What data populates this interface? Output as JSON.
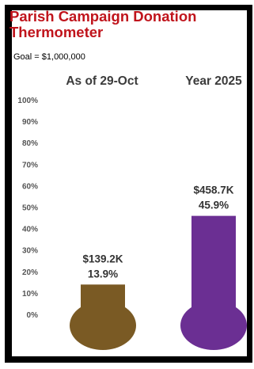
{
  "header": {
    "title_line1": "Parish Campaign Donation",
    "title_line2": "Thermometer",
    "goal": "Goal = $1,000,000"
  },
  "colors": {
    "title": "#c0141c",
    "frame": "#000000",
    "bar_1": "#7a5a24",
    "bar_2": "#6b2f93"
  },
  "chart_data": {
    "type": "bar",
    "categories": [
      "As of 29-Oct",
      "Year 2025"
    ],
    "values": [
      13.9,
      45.9
    ],
    "amounts": [
      "$139.2K",
      "$458.7K"
    ],
    "value_labels": [
      "13.9%",
      "45.9%"
    ],
    "ylim": [
      0,
      100
    ],
    "yticks": [
      "0%",
      "10%",
      "20%",
      "30%",
      "40%",
      "50%",
      "60%",
      "70%",
      "80%",
      "90%",
      "100%"
    ],
    "grid": false,
    "legend": "none"
  }
}
